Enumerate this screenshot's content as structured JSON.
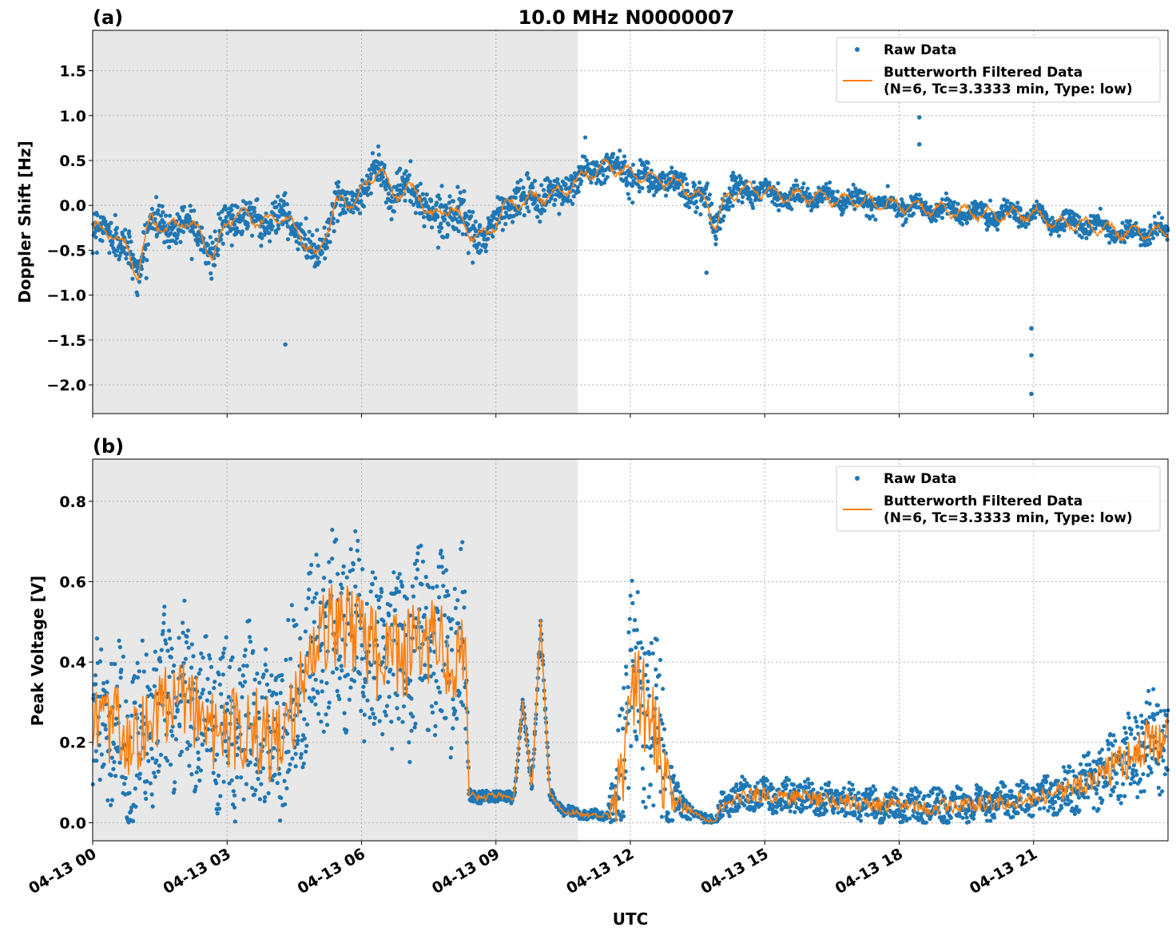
{
  "chart_data": [
    {
      "type": "scatter",
      "panel_label": "(a)",
      "title": "10.0 MHz N0000007",
      "xlabel": "",
      "ylabel": "Doppler Shift [Hz]",
      "xlim_hours": [
        0,
        24
      ],
      "ylim": [
        -2.32,
        1.95
      ],
      "yticks": [
        1.5,
        1.0,
        0.5,
        0.0,
        -0.5,
        -1.0,
        -1.5,
        -2.0
      ],
      "ytick_labels": [
        "1.5",
        "1.0",
        "0.5",
        "0.0",
        "−0.5",
        "−1.0",
        "−1.5",
        "−2.0"
      ],
      "shaded_region_hours": [
        0,
        10.83
      ],
      "grid": true,
      "legend_position": "top-right",
      "legend": {
        "raw": "Raw Data",
        "filtered_line1": "Butterworth Filtered Data",
        "filtered_line2": "(N=6, Tc=3.3333 min, Type: low)"
      },
      "series": [
        {
          "name": "Raw Data",
          "kind": "points",
          "color": "#1f77b4",
          "trend": {
            "x": [
              0,
              0.4,
              0.8,
              1.0,
              1.3,
              1.6,
              2.0,
              2.4,
              2.7,
              3.0,
              3.4,
              3.8,
              4.2,
              4.6,
              5.0,
              5.4,
              5.8,
              6.1,
              6.4,
              6.7,
              7.0,
              7.3,
              7.6,
              8.0,
              8.4,
              8.8,
              9.2,
              9.6,
              10.0,
              10.5,
              11.0,
              11.5,
              12.0,
              12.5,
              13.0,
              13.4,
              13.7,
              13.9,
              14.1,
              14.5,
              15.0,
              15.5,
              16.0,
              17.0,
              18.0,
              19.0,
              20.0,
              21.0,
              21.5,
              22.0,
              23.0,
              24.0
            ],
            "y": [
              -0.25,
              -0.3,
              -0.5,
              -0.8,
              -0.1,
              -0.3,
              -0.15,
              -0.3,
              -0.6,
              -0.15,
              -0.1,
              -0.2,
              -0.1,
              -0.3,
              -0.6,
              0.0,
              0.05,
              0.2,
              0.45,
              0.1,
              0.2,
              0.1,
              -0.15,
              0.0,
              -0.3,
              -0.35,
              0.0,
              0.05,
              0.1,
              0.15,
              0.35,
              0.45,
              0.35,
              0.3,
              0.25,
              0.15,
              0.05,
              -0.25,
              0.05,
              0.2,
              0.15,
              0.1,
              0.1,
              0.05,
              0.0,
              -0.05,
              -0.1,
              -0.1,
              -0.2,
              -0.2,
              -0.3,
              -0.3
            ]
          },
          "outliers": [
            {
              "x": 4.3,
              "y": -1.55
            },
            {
              "x": 13.7,
              "y": -0.75
            },
            {
              "x": 18.45,
              "y": 0.98
            },
            {
              "x": 18.45,
              "y": 0.68
            },
            {
              "x": 20.95,
              "y": -1.37
            },
            {
              "x": 20.95,
              "y": -1.67
            },
            {
              "x": 20.95,
              "y": -2.1
            }
          ]
        },
        {
          "name": "Butterworth Filtered Data",
          "kind": "line",
          "color": "#ff7f0e"
        }
      ]
    },
    {
      "type": "scatter",
      "panel_label": "(b)",
      "title": "",
      "xlabel": "UTC",
      "ylabel": "Peak Voltage [V]",
      "xlim_hours": [
        0,
        24
      ],
      "ylim": [
        -0.045,
        0.905
      ],
      "yticks": [
        0.0,
        0.2,
        0.4,
        0.6,
        0.8
      ],
      "ytick_labels": [
        "0.0",
        "0.2",
        "0.4",
        "0.6",
        "0.8"
      ],
      "xticks_hours": [
        0,
        3,
        6,
        9,
        12,
        15,
        18,
        21
      ],
      "xtick_labels": [
        "04-13 00",
        "04-13 03",
        "04-13 06",
        "04-13 09",
        "04-13 12",
        "04-13 15",
        "04-13 18",
        "04-13 21"
      ],
      "shaded_region_hours": [
        0,
        10.83
      ],
      "grid": true,
      "legend_position": "top-right",
      "legend": {
        "raw": "Raw Data",
        "filtered_line1": "Butterworth Filtered Data",
        "filtered_line2": "(N=6, Tc=3.3333 min, Type: low)"
      },
      "series": [
        {
          "name": "Raw Data",
          "kind": "points",
          "color": "#1f77b4",
          "trend": {
            "x": [
              0,
              0.5,
              1.0,
              1.5,
              2.0,
              2.5,
              3.0,
              3.5,
              4.0,
              4.5,
              5.0,
              5.5,
              6.0,
              6.5,
              7.0,
              7.5,
              8.0,
              8.3,
              8.4,
              8.7,
              9.0,
              9.4,
              9.6,
              9.8,
              10.0,
              10.2,
              10.5,
              11.0,
              11.5,
              11.8,
              12.0,
              12.3,
              12.6,
              12.9,
              13.2,
              13.5,
              13.7,
              13.9,
              14.1,
              14.5,
              15.0,
              16.0,
              17.0,
              18.0,
              19.0,
              20.0,
              21.0,
              22.0,
              22.5,
              23.0,
              23.5,
              24.0
            ],
            "y": [
              0.22,
              0.25,
              0.2,
              0.3,
              0.32,
              0.25,
              0.22,
              0.25,
              0.2,
              0.3,
              0.45,
              0.5,
              0.45,
              0.4,
              0.42,
              0.45,
              0.4,
              0.45,
              0.07,
              0.06,
              0.07,
              0.06,
              0.3,
              0.08,
              0.5,
              0.07,
              0.03,
              0.02,
              0.02,
              0.1,
              0.38,
              0.3,
              0.2,
              0.06,
              0.04,
              0.02,
              0.005,
              0.005,
              0.05,
              0.07,
              0.07,
              0.06,
              0.05,
              0.04,
              0.04,
              0.05,
              0.06,
              0.09,
              0.12,
              0.15,
              0.2,
              0.2
            ]
          },
          "spread": {
            "x": [
              0,
              8.3,
              8.4,
              11.5,
              11.8,
              12.7,
              13.0,
              13.5,
              14.0,
              15.0,
              21.0,
              22.0,
              23.5,
              24.0
            ],
            "y": [
              0.17,
              0.2,
              0.015,
              0.01,
              0.2,
              0.2,
              0.04,
              0.005,
              0.03,
              0.035,
              0.035,
              0.05,
              0.1,
              0.1
            ]
          }
        },
        {
          "name": "Butterworth Filtered Data",
          "kind": "line",
          "color": "#ff7f0e"
        }
      ]
    }
  ],
  "colors": {
    "raw": "#1f77b4",
    "filtered": "#ff7f0e",
    "shade": "#e8e8e8",
    "grid": "#b0b0b0"
  }
}
